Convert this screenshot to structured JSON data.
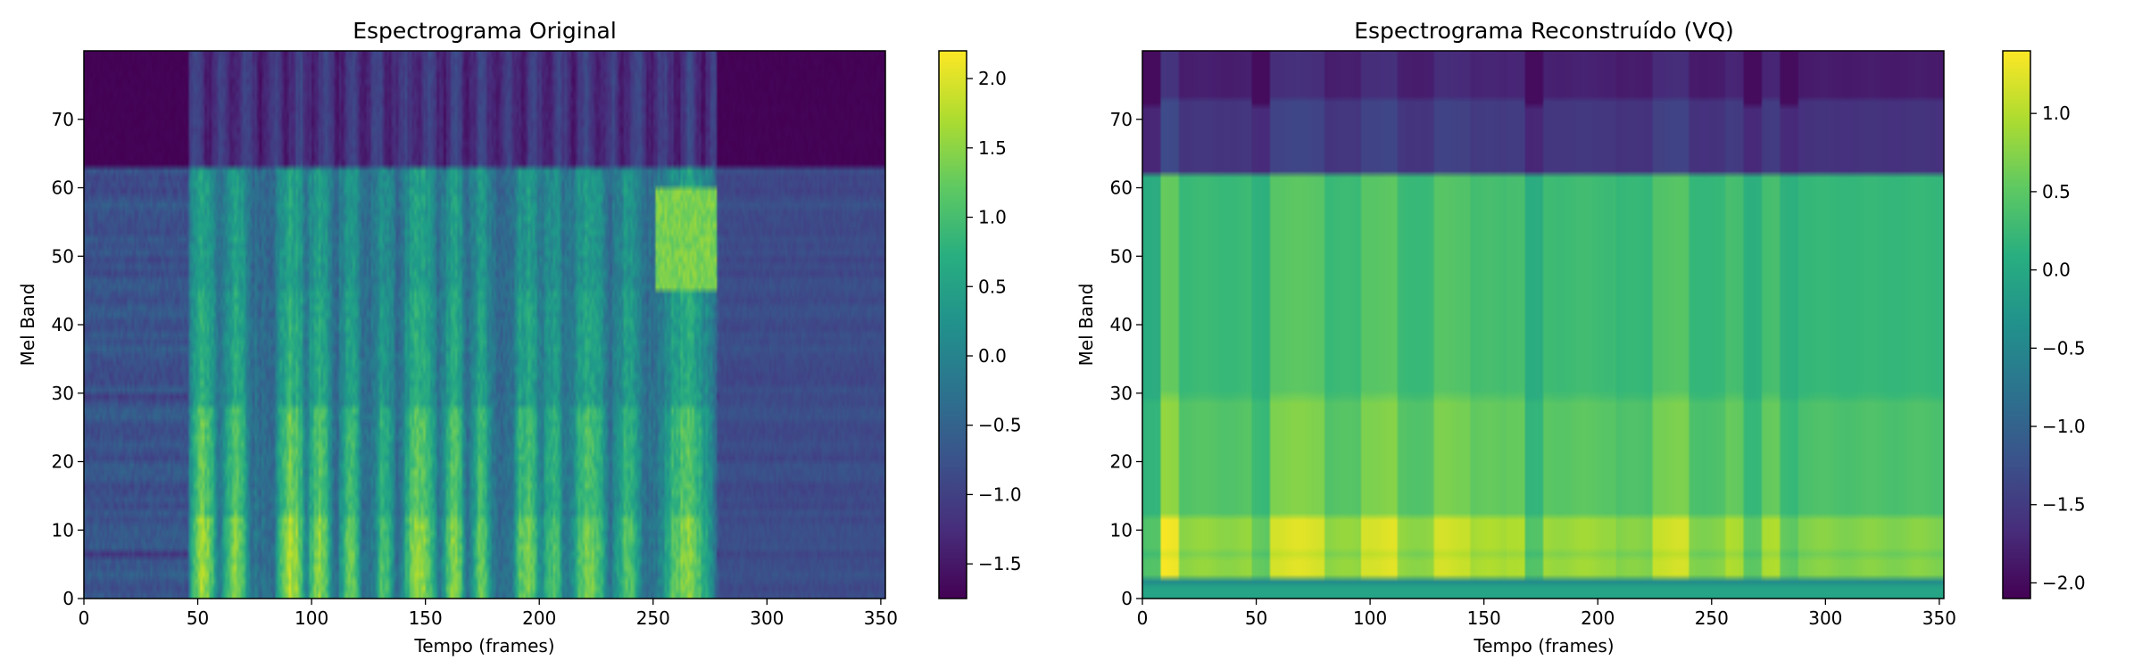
{
  "chart_data": [
    {
      "type": "heatmap",
      "title": "Espectrograma Original",
      "xlabel": "Tempo (frames)",
      "ylabel": "Mel Band",
      "xlim": [
        0,
        352
      ],
      "ylim": [
        0,
        80
      ],
      "xticks": [
        "0",
        "50",
        "100",
        "150",
        "200",
        "250",
        "300",
        "350"
      ],
      "yticks": [
        "0",
        "10",
        "20",
        "30",
        "40",
        "50",
        "60",
        "70"
      ],
      "colormap": "viridis",
      "colorbar": {
        "range": [
          -1.75,
          2.2
        ],
        "ticks": [
          "−1.5",
          "−1.0",
          "−0.5",
          "0.0",
          "0.5",
          "1.0",
          "1.5",
          "2.0"
        ]
      },
      "n_frames": 352,
      "n_mels": 80,
      "active_frames": [
        46,
        278
      ],
      "silent_level": -1.75,
      "voiced_bursts": [
        {
          "start": 46,
          "end": 58,
          "peak": 2.0
        },
        {
          "start": 60,
          "end": 72,
          "peak": 1.8
        },
        {
          "start": 84,
          "end": 97,
          "peak": 2.1
        },
        {
          "start": 98,
          "end": 108,
          "peak": 1.9
        },
        {
          "start": 112,
          "end": 121,
          "peak": 1.7
        },
        {
          "start": 128,
          "end": 135,
          "peak": 1.5
        },
        {
          "start": 139,
          "end": 155,
          "peak": 1.9
        },
        {
          "start": 157,
          "end": 167,
          "peak": 1.8
        },
        {
          "start": 170,
          "end": 178,
          "peak": 1.6
        },
        {
          "start": 188,
          "end": 200,
          "peak": 1.8
        },
        {
          "start": 201,
          "end": 210,
          "peak": 1.5
        },
        {
          "start": 213,
          "end": 230,
          "peak": 1.7
        },
        {
          "start": 232,
          "end": 244,
          "peak": 1.4
        },
        {
          "start": 252,
          "end": 276,
          "peak": 1.8
        }
      ]
    },
    {
      "type": "heatmap",
      "title": "Espectrograma Reconstruído (VQ)",
      "xlabel": "Tempo (frames)",
      "ylabel": "Mel Band",
      "xlim": [
        0,
        352
      ],
      "ylim": [
        0,
        80
      ],
      "xticks": [
        "0",
        "50",
        "100",
        "150",
        "200",
        "250",
        "300",
        "350"
      ],
      "yticks": [
        "0",
        "10",
        "20",
        "30",
        "40",
        "50",
        "60",
        "70"
      ],
      "colormap": "viridis",
      "colorbar": {
        "range": [
          -2.1,
          1.4
        ],
        "ticks": [
          "−2.0",
          "−1.5",
          "−1.0",
          "−0.5",
          "0.0",
          "0.5",
          "1.0"
        ]
      },
      "n_frames": 352,
      "n_mels": 80,
      "segment_edges": [
        0,
        8,
        16,
        48,
        56,
        80,
        96,
        112,
        128,
        144,
        160,
        168,
        176,
        208,
        224,
        240,
        256,
        264,
        272,
        280,
        288,
        296,
        352
      ],
      "segment_strength": [
        0.6,
        1.3,
        0.9,
        0.7,
        1.2,
        0.9,
        1.2,
        0.9,
        1.15,
        1.0,
        1.05,
        0.6,
        0.95,
        0.85,
        1.15,
        0.85,
        1.0,
        0.7,
        1.0,
        0.7,
        0.85,
        0.85
      ]
    }
  ]
}
